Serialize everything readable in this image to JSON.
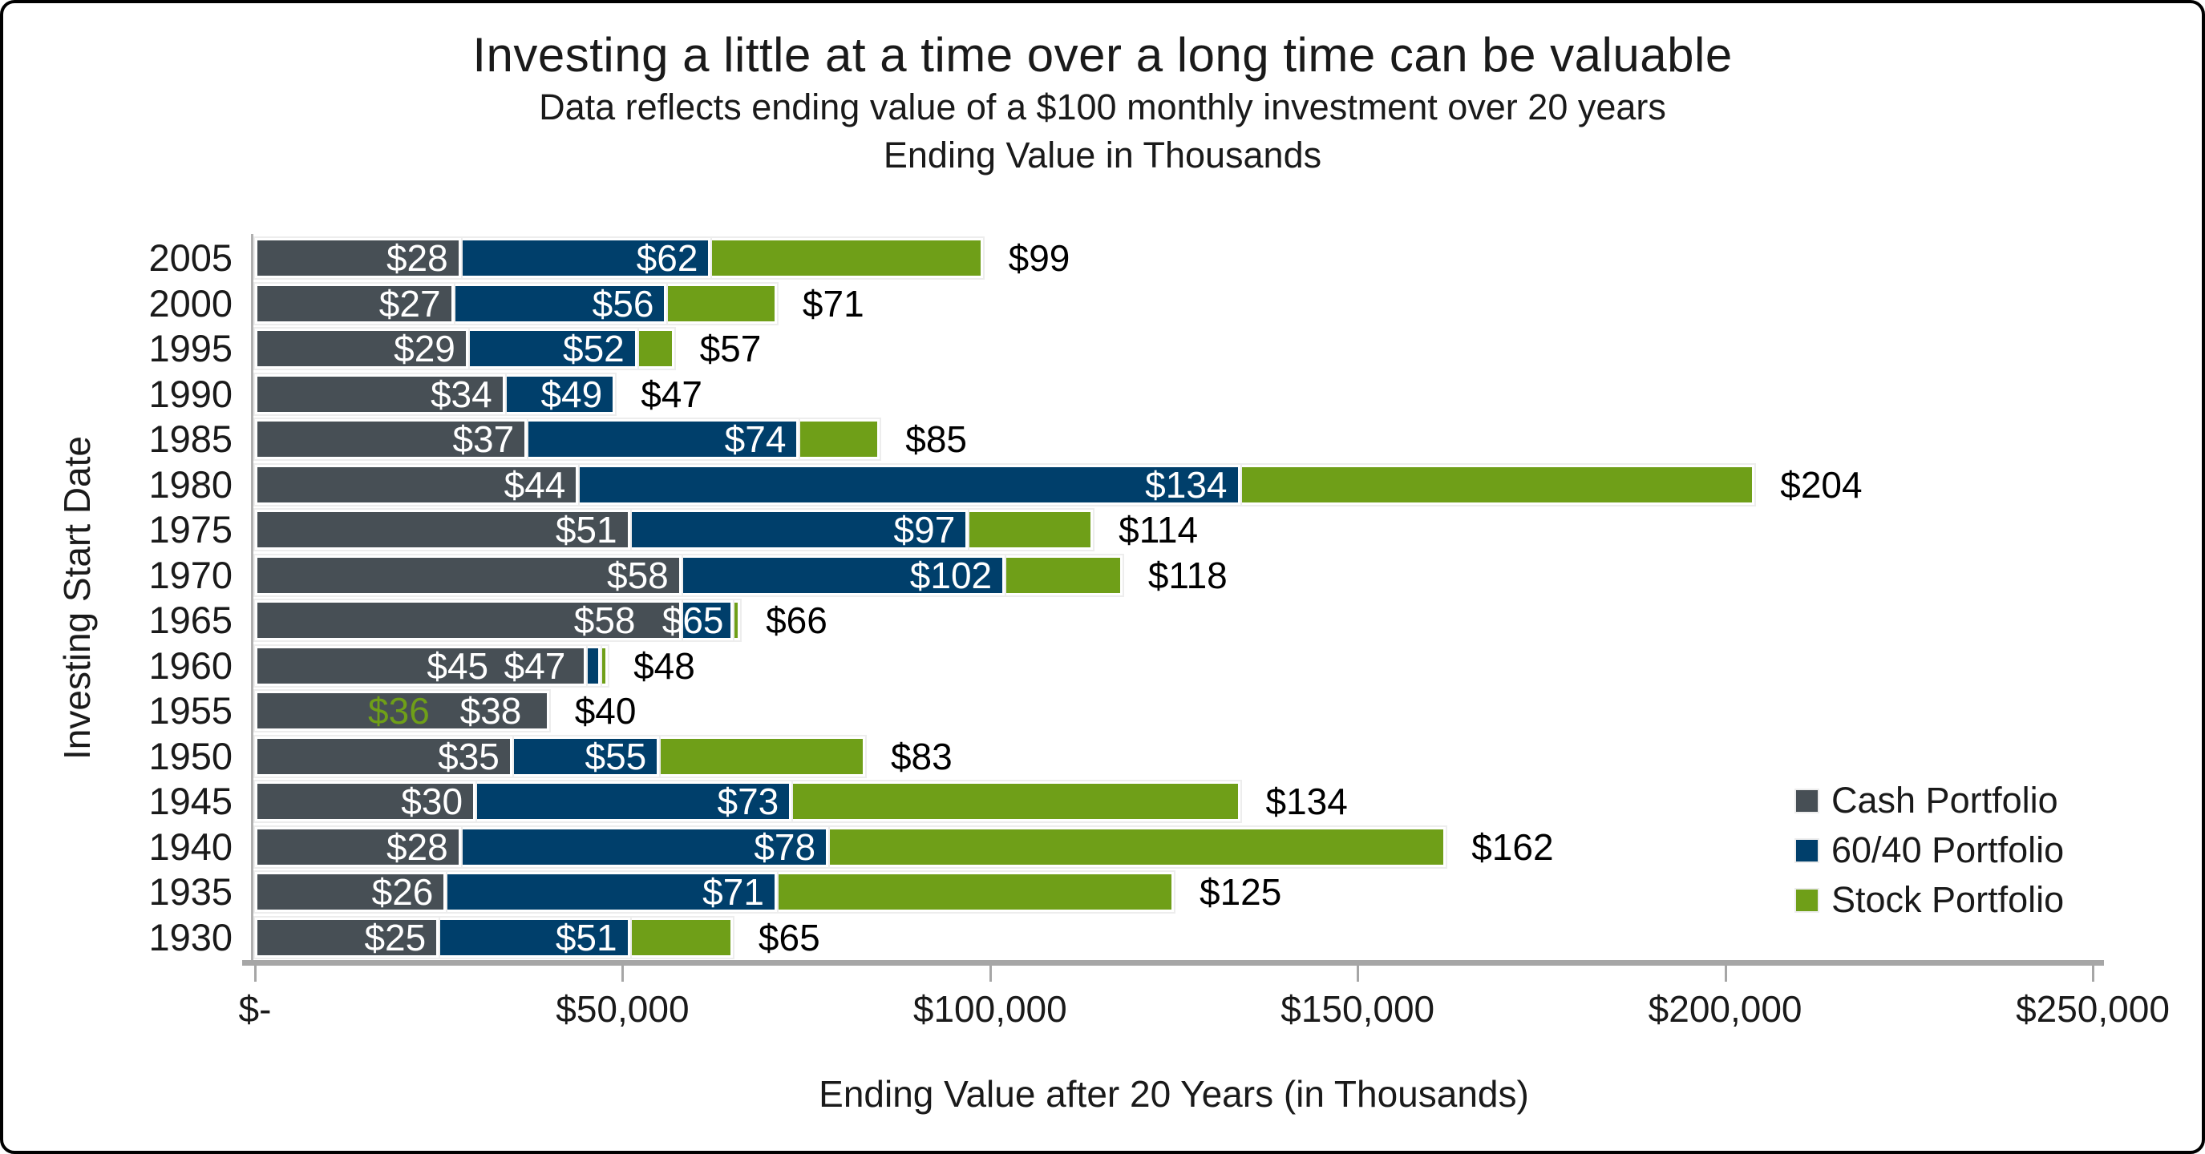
{
  "accent_colors": {
    "cash_gray": "#474f55",
    "portfolio_blue": "#003f6b",
    "stock_green": "#6f9f18",
    "axis_gray": "#a6a6a6",
    "frame_black": "#000000"
  },
  "chart_data": {
    "type": "bar",
    "orientation": "horizontal",
    "title": "Investing a little at a time over a long time can be valuable",
    "subtitle": "Data reflects ending value of a $100 monthly investment over 20 years",
    "subtitle2": "Ending Value in Thousands",
    "xlabel": "Ending Value after 20 Years (in Thousands)",
    "ylabel": "Investing Start Date",
    "xlim_thousands": [
      0,
      250
    ],
    "x_tick_labels": [
      "$-",
      "$50,000",
      "$100,000",
      "$150,000",
      "$200,000",
      "$250,000"
    ],
    "grid": "off",
    "legend_position": "right-middle",
    "bar_style": "overlapped-from-zero",
    "categories": [
      "2005",
      "2000",
      "1995",
      "1990",
      "1985",
      "1980",
      "1975",
      "1970",
      "1965",
      "1960",
      "1955",
      "1950",
      "1945",
      "1940",
      "1935",
      "1930"
    ],
    "series": [
      {
        "name": "Cash Portfolio",
        "color": "#474f55",
        "z": 3,
        "values": [
          28,
          27,
          29,
          34,
          37,
          44,
          51,
          58,
          58,
          45,
          40,
          35,
          30,
          28,
          26,
          25
        ]
      },
      {
        "name": "60/40 Portfolio",
        "color": "#003f6b",
        "z": 2,
        "values": [
          62,
          56,
          52,
          49,
          74,
          134,
          97,
          102,
          65,
          47,
          38,
          55,
          73,
          78,
          71,
          51
        ]
      },
      {
        "name": "Stock Portfolio",
        "color": "#6f9f18",
        "z": 1,
        "values": [
          99,
          71,
          57,
          47,
          85,
          204,
          114,
          118,
          66,
          48,
          36,
          83,
          134,
          162,
          125,
          65
        ]
      }
    ],
    "value_labels": [
      [
        {
          "text": "$28",
          "color": "#ffffff",
          "mode": "in",
          "anchor": 28
        },
        {
          "text": "$62",
          "color": "#ffffff",
          "mode": "in",
          "anchor": 62
        },
        {
          "text": "$99",
          "color": "#000000",
          "mode": "out",
          "anchor": 99
        }
      ],
      [
        {
          "text": "$27",
          "color": "#ffffff",
          "mode": "in",
          "anchor": 27
        },
        {
          "text": "$56",
          "color": "#ffffff",
          "mode": "in",
          "anchor": 56
        },
        {
          "text": "$71",
          "color": "#000000",
          "mode": "out",
          "anchor": 71
        }
      ],
      [
        {
          "text": "$29",
          "color": "#ffffff",
          "mode": "in",
          "anchor": 29
        },
        {
          "text": "$52",
          "color": "#ffffff",
          "mode": "in",
          "anchor": 52
        },
        {
          "text": "$57",
          "color": "#000000",
          "mode": "out",
          "anchor": 57
        }
      ],
      [
        {
          "text": "$34",
          "color": "#ffffff",
          "mode": "in",
          "anchor": 34
        },
        {
          "text": "$49",
          "color": "#ffffff",
          "mode": "in",
          "anchor": 49
        },
        {
          "text": "$47",
          "color": "#000000",
          "mode": "out",
          "anchor": 49
        }
      ],
      [
        {
          "text": "$37",
          "color": "#ffffff",
          "mode": "in",
          "anchor": 37
        },
        {
          "text": "$74",
          "color": "#ffffff",
          "mode": "in",
          "anchor": 74
        },
        {
          "text": "$85",
          "color": "#000000",
          "mode": "out",
          "anchor": 85
        }
      ],
      [
        {
          "text": "$44",
          "color": "#ffffff",
          "mode": "in",
          "anchor": 44
        },
        {
          "text": "$134",
          "color": "#ffffff",
          "mode": "in",
          "anchor": 134
        },
        {
          "text": "$204",
          "color": "#000000",
          "mode": "out",
          "anchor": 204
        }
      ],
      [
        {
          "text": "$51",
          "color": "#ffffff",
          "mode": "in",
          "anchor": 51
        },
        {
          "text": "$97",
          "color": "#ffffff",
          "mode": "in",
          "anchor": 97
        },
        {
          "text": "$114",
          "color": "#000000",
          "mode": "out",
          "anchor": 114
        }
      ],
      [
        {
          "text": "$58",
          "color": "#ffffff",
          "mode": "in",
          "anchor": 58
        },
        {
          "text": "$102",
          "color": "#ffffff",
          "mode": "in",
          "anchor": 102
        },
        {
          "text": "$118",
          "color": "#000000",
          "mode": "out",
          "anchor": 118
        }
      ],
      [
        {
          "text": "$58",
          "color": "#ffffff",
          "mode": "in",
          "anchor": 53.5
        },
        {
          "text": "$65",
          "color": "#ffffff",
          "mode": "in",
          "anchor": 65.5
        },
        {
          "text": "$66",
          "color": "#000000",
          "mode": "out",
          "anchor": 66
        }
      ],
      [
        {
          "text": "$45",
          "color": "#ffffff",
          "mode": "in",
          "anchor": 33.5
        },
        {
          "text": "$47",
          "color": "#ffffff",
          "mode": "in",
          "anchor": 44
        },
        {
          "text": "$48",
          "color": "#000000",
          "mode": "out",
          "anchor": 48
        }
      ],
      [
        {
          "text": "$36",
          "color": "#6f9f18",
          "mode": "in",
          "anchor": 25.5
        },
        {
          "text": "$38",
          "color": "#ffffff",
          "mode": "in",
          "anchor": 38
        },
        {
          "text": "$40",
          "color": "#000000",
          "mode": "out",
          "anchor": 40
        }
      ],
      [
        {
          "text": "$35",
          "color": "#ffffff",
          "mode": "in",
          "anchor": 35
        },
        {
          "text": "$55",
          "color": "#ffffff",
          "mode": "in",
          "anchor": 55
        },
        {
          "text": "$83",
          "color": "#000000",
          "mode": "out",
          "anchor": 83
        }
      ],
      [
        {
          "text": "$30",
          "color": "#ffffff",
          "mode": "in",
          "anchor": 30
        },
        {
          "text": "$73",
          "color": "#ffffff",
          "mode": "in",
          "anchor": 73
        },
        {
          "text": "$134",
          "color": "#000000",
          "mode": "out",
          "anchor": 134
        }
      ],
      [
        {
          "text": "$28",
          "color": "#ffffff",
          "mode": "in",
          "anchor": 28
        },
        {
          "text": "$78",
          "color": "#ffffff",
          "mode": "in",
          "anchor": 78
        },
        {
          "text": "$162",
          "color": "#000000",
          "mode": "out",
          "anchor": 162
        }
      ],
      [
        {
          "text": "$26",
          "color": "#ffffff",
          "mode": "in",
          "anchor": 26
        },
        {
          "text": "$71",
          "color": "#ffffff",
          "mode": "in",
          "anchor": 71
        },
        {
          "text": "$125",
          "color": "#000000",
          "mode": "out",
          "anchor": 125
        }
      ],
      [
        {
          "text": "$25",
          "color": "#ffffff",
          "mode": "in",
          "anchor": 25
        },
        {
          "text": "$51",
          "color": "#ffffff",
          "mode": "in",
          "anchor": 51
        },
        {
          "text": "$65",
          "color": "#000000",
          "mode": "out",
          "anchor": 65
        }
      ]
    ],
    "legend": [
      "Cash Portfolio",
      "60/40 Portfolio",
      "Stock Portfolio"
    ]
  }
}
